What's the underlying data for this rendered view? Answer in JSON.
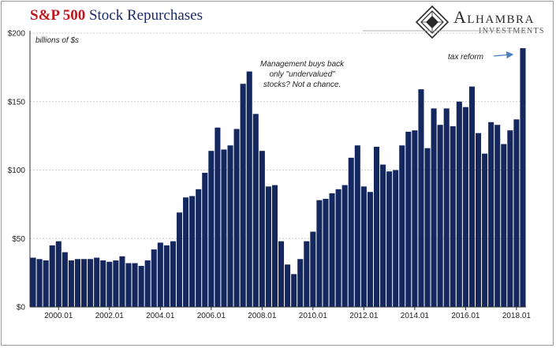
{
  "title": {
    "part1": "S&P 500",
    "part2": "Stock Repurchases"
  },
  "logo": {
    "name": "Alhambra",
    "sub": "INVESTMENTS"
  },
  "chart_data": {
    "type": "bar",
    "ylabel": "billions of $s",
    "ylim": [
      0,
      200
    ],
    "yticks": [
      "$0",
      "$50",
      "$100",
      "$150",
      "$200"
    ],
    "ytick_values": [
      0,
      50,
      100,
      150,
      200
    ],
    "x_tick_labels": [
      "2000.01",
      "2002.01",
      "2004.01",
      "2006.01",
      "2008.01",
      "2010.01",
      "2012.01",
      "2014.01",
      "2016.01",
      "2018.01"
    ],
    "x_tick_indices": [
      4,
      12,
      20,
      28,
      36,
      44,
      52,
      60,
      68,
      76
    ],
    "grid": "horizontal dashed",
    "bar_color": "#14275e",
    "values": [
      36,
      35,
      34,
      45,
      48,
      40,
      34,
      35,
      35,
      35,
      36,
      34,
      33,
      34,
      37,
      32,
      32,
      30,
      34,
      42,
      47,
      45,
      48,
      69,
      80,
      81,
      86,
      98,
      114,
      131,
      115,
      118,
      130,
      163,
      172,
      141,
      114,
      88,
      89,
      48,
      31,
      24,
      35,
      48,
      55,
      78,
      79,
      83,
      86,
      89,
      109,
      118,
      88,
      84,
      117,
      104,
      99,
      100,
      118,
      128,
      129,
      159,
      116,
      145,
      133,
      145,
      132,
      150,
      146,
      161,
      127,
      112,
      135,
      133,
      119,
      129,
      137,
      189
    ],
    "annotations": [
      {
        "text": [
          "Management buys back",
          "only \"undervalued\"",
          "stocks?  Not a chance."
        ]
      },
      {
        "text": [
          "tax reform"
        ]
      }
    ]
  }
}
